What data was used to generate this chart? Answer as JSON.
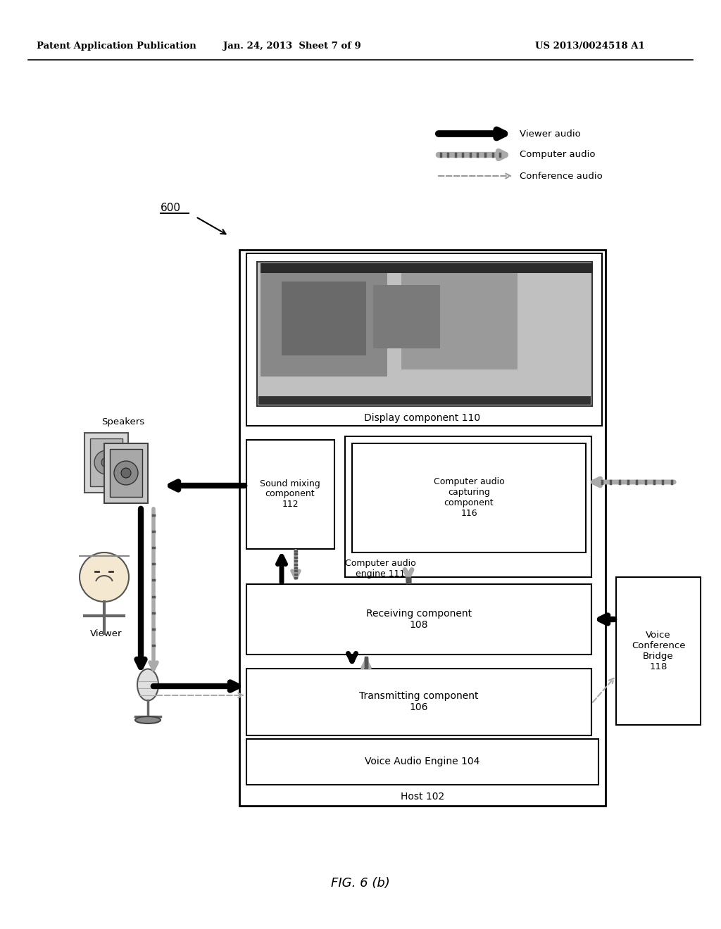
{
  "bg_color": "#ffffff",
  "header_left": "Patent Application Publication",
  "header_mid": "Jan. 24, 2013  Sheet 7 of 9",
  "header_right": "US 2013/0024518 A1",
  "figure_label": "FIG. 6 (b)",
  "legend_viewer": "Viewer audio",
  "legend_computer": "Computer audio",
  "legend_conference": "Conference audio",
  "label_host": "Host 102",
  "label_display": "Display component 110",
  "label_vae": "Voice Audio Engine 104",
  "label_sound_mixing": "Sound mixing\ncomponent\n112",
  "label_comp_audio_cap": "Computer audio\ncapturing\ncomponent\n116",
  "label_comp_audio_engine": "Computer audio\nengine 111",
  "label_receiving": "Receiving component\n108",
  "label_transmitting": "Transmitting component\n106",
  "label_vcb": "Voice\nConference\nBridge\n118",
  "label_speakers": "Speakers",
  "label_viewer": "Viewer"
}
